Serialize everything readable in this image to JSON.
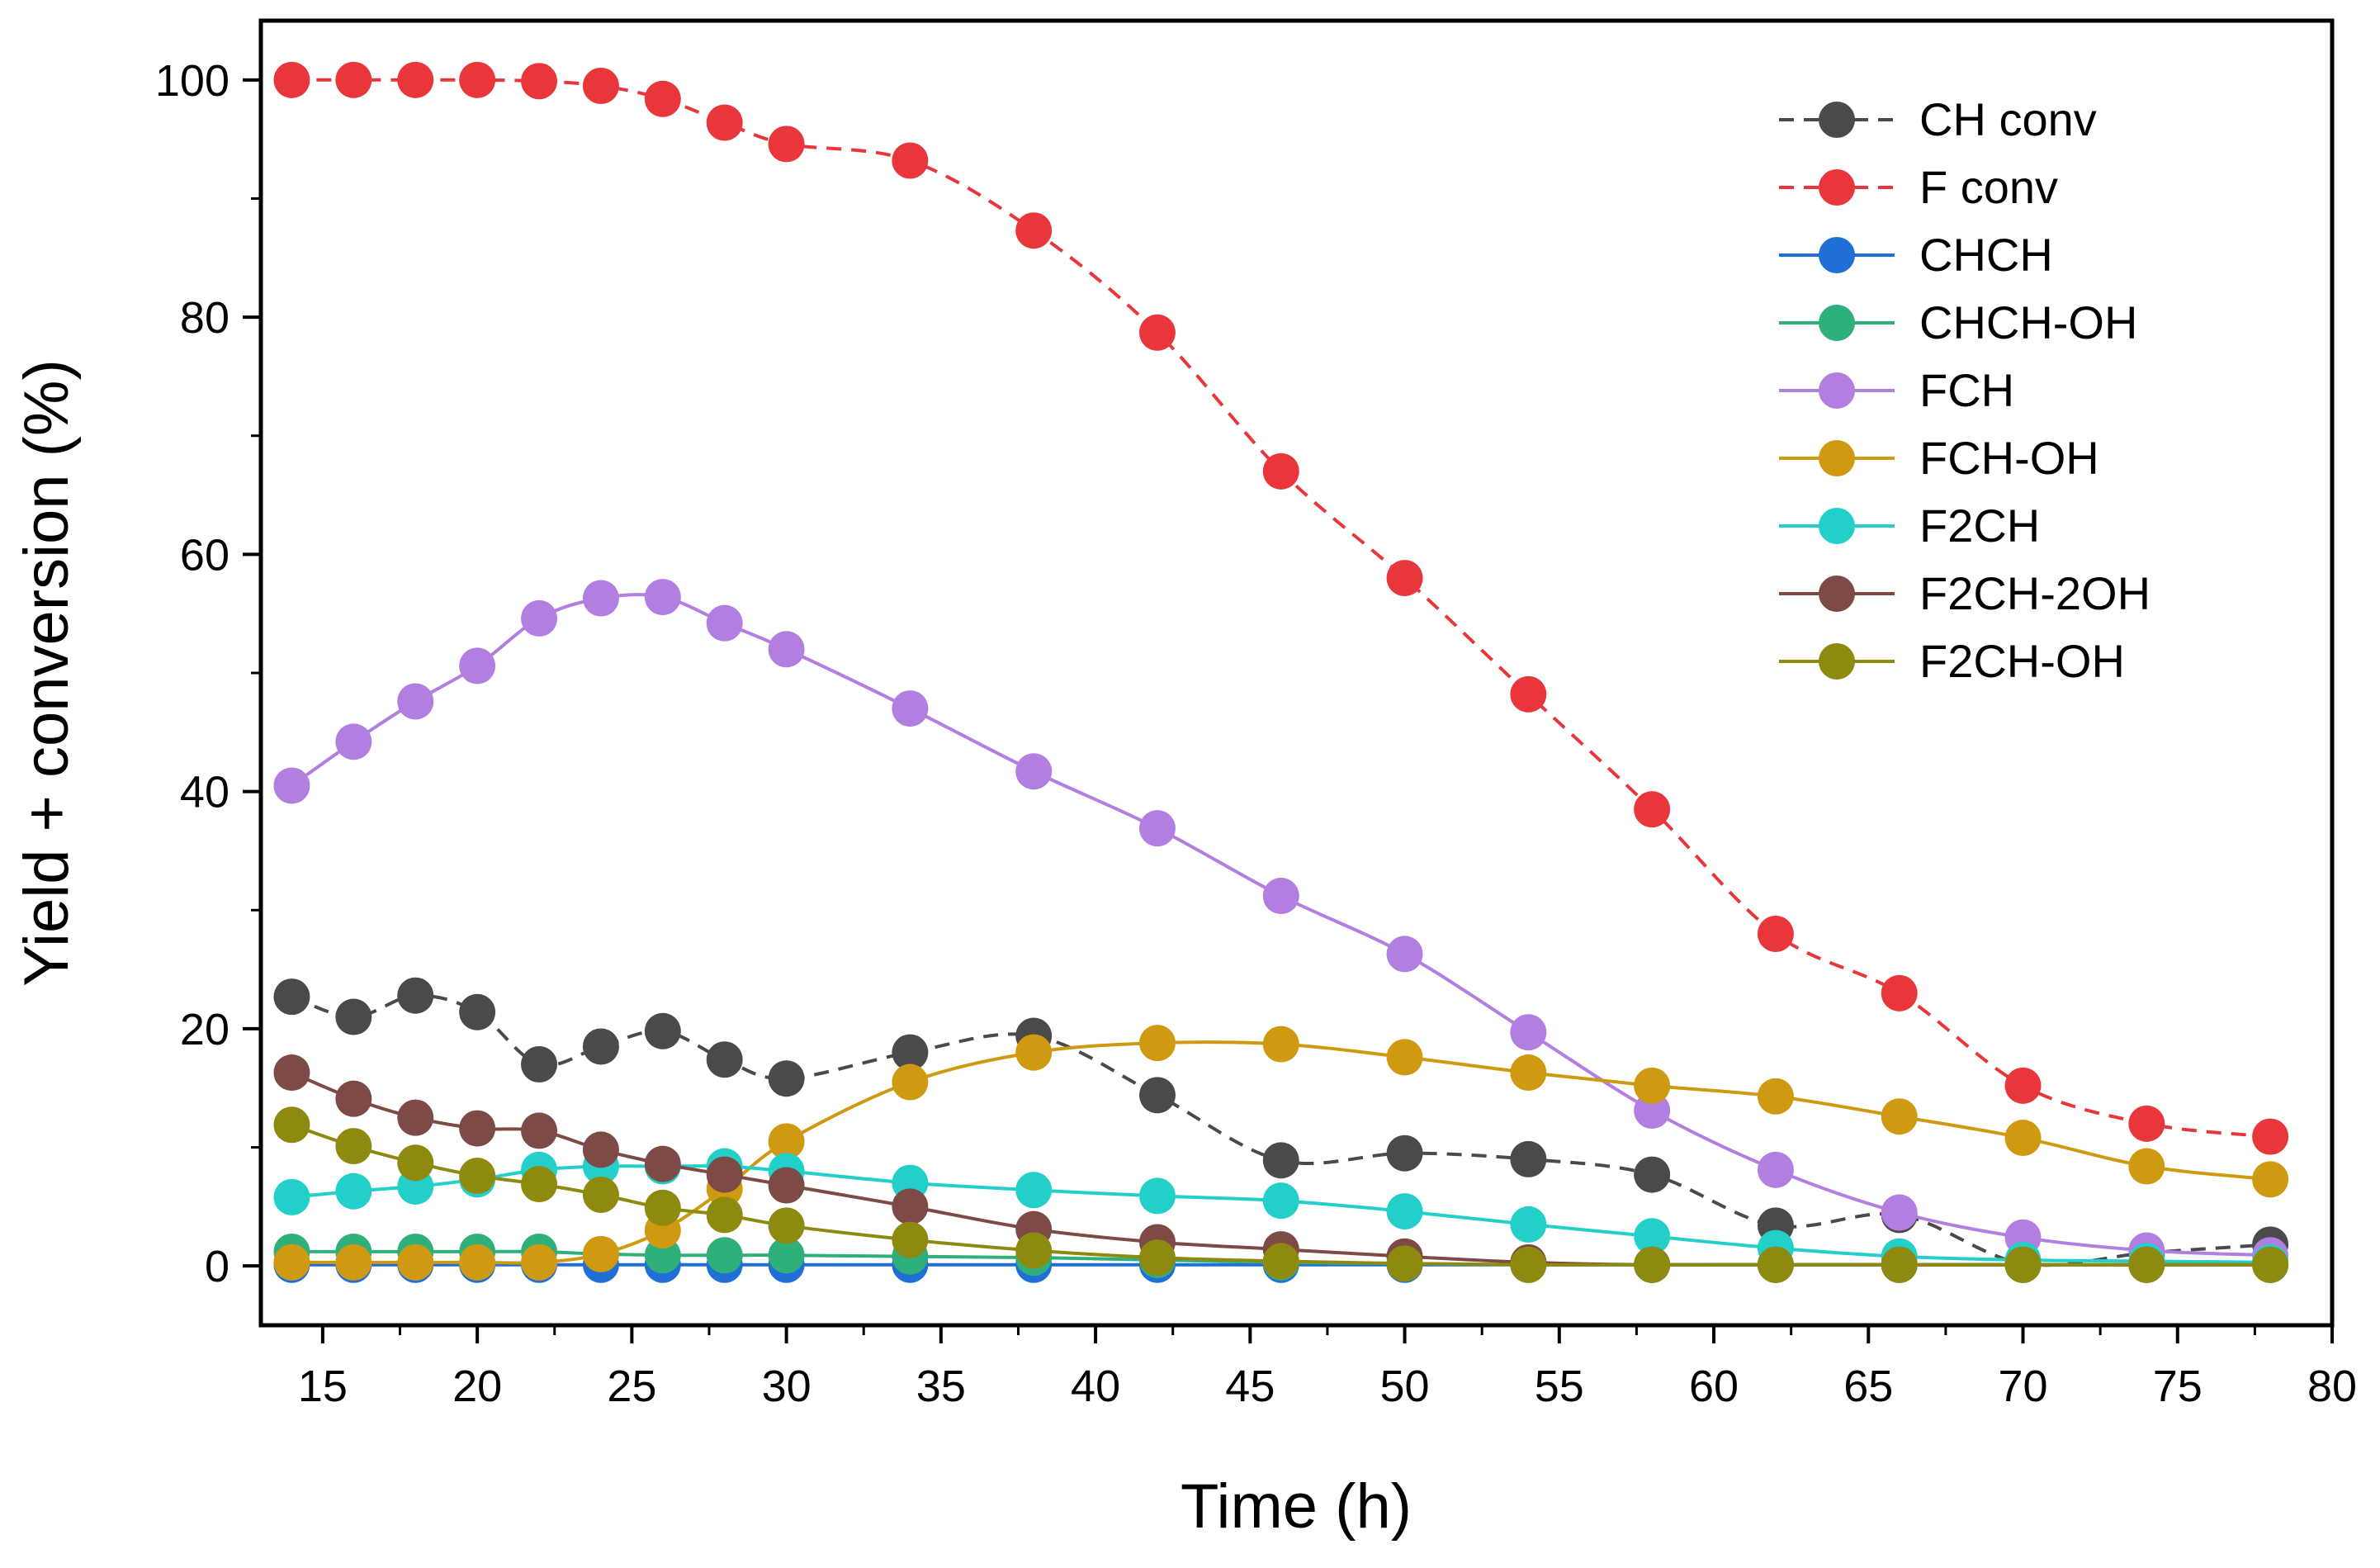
{
  "chart_data": {
    "type": "line",
    "title": "",
    "xlabel": "Time (h)",
    "ylabel": "Yield + conversion (%)",
    "xlim": [
      13,
      80
    ],
    "ylim": [
      -5,
      105
    ],
    "xticks": [
      15,
      20,
      25,
      30,
      35,
      40,
      45,
      50,
      55,
      60,
      65,
      70,
      75,
      80
    ],
    "yticks": [
      0,
      20,
      40,
      60,
      80,
      100
    ],
    "grid": false,
    "legend_position": "top-right",
    "x": [
      14,
      16,
      18,
      20,
      22,
      24,
      26,
      28,
      30,
      34,
      38,
      42,
      46,
      50,
      54,
      58,
      62,
      66,
      70,
      74,
      78
    ],
    "series": [
      {
        "name": "CH conv",
        "color": "#4a4a4a",
        "dash": true,
        "values": [
          22.7,
          21.0,
          22.8,
          21.4,
          17.0,
          18.5,
          19.8,
          17.4,
          15.8,
          18.0,
          19.4,
          14.4,
          8.9,
          9.5,
          9.0,
          7.7,
          3.4,
          4.3,
          0.2,
          1.1,
          1.8
        ]
      },
      {
        "name": "F conv",
        "color": "#e8363a",
        "dash": true,
        "values": [
          100.0,
          100.0,
          100.0,
          100.0,
          99.9,
          99.5,
          98.4,
          96.4,
          94.6,
          93.2,
          87.3,
          78.7,
          67.0,
          58.0,
          48.2,
          38.5,
          28.0,
          23.0,
          15.2,
          12.0,
          10.9
        ]
      },
      {
        "name": "CHCH",
        "color": "#1f6fd6",
        "dash": false,
        "values": [
          0.1,
          0.1,
          0.1,
          0.1,
          0.1,
          0.1,
          0.1,
          0.1,
          0.1,
          0.1,
          0.1,
          0.1,
          0.1,
          0.1,
          0.1,
          0.1,
          0.1,
          0.1,
          0.1,
          0.1,
          0.1
        ]
      },
      {
        "name": "CHCH-OH",
        "color": "#2fb07a",
        "dash": false,
        "values": [
          1.2,
          1.2,
          1.2,
          1.2,
          1.2,
          1.0,
          0.9,
          0.9,
          0.9,
          0.8,
          0.7,
          0.5,
          0.3,
          0.2,
          0.1,
          0.1,
          0.1,
          0.1,
          0.1,
          0.1,
          0.1
        ]
      },
      {
        "name": "FCH",
        "color": "#b27ee0",
        "dash": false,
        "values": [
          40.5,
          44.2,
          47.6,
          50.6,
          54.6,
          56.3,
          56.4,
          54.2,
          52.0,
          47.0,
          41.7,
          36.9,
          31.2,
          26.3,
          19.7,
          13.1,
          8.1,
          4.5,
          2.4,
          1.3,
          0.9
        ]
      },
      {
        "name": "FCH-OH",
        "color": "#cf9a12",
        "dash": false,
        "values": [
          0.3,
          0.3,
          0.3,
          0.3,
          0.3,
          1.0,
          3.0,
          6.5,
          10.5,
          15.5,
          18.0,
          18.8,
          18.7,
          17.6,
          16.3,
          15.2,
          14.3,
          12.6,
          10.8,
          8.4,
          7.3
        ]
      },
      {
        "name": "F2CH",
        "color": "#22cfc9",
        "dash": false,
        "values": [
          5.8,
          6.3,
          6.7,
          7.3,
          8.1,
          8.4,
          8.4,
          8.4,
          8.0,
          7.0,
          6.4,
          5.9,
          5.5,
          4.6,
          3.5,
          2.5,
          1.5,
          0.8,
          0.5,
          0.4,
          0.3
        ]
      },
      {
        "name": "F2CH-2OH",
        "color": "#7d4a46",
        "dash": false,
        "values": [
          16.3,
          14.1,
          12.5,
          11.6,
          11.4,
          9.8,
          8.6,
          7.7,
          6.8,
          5.0,
          3.1,
          2.0,
          1.4,
          0.8,
          0.3,
          0.1,
          0.1,
          0.1,
          0.1,
          0.1,
          0.1
        ]
      },
      {
        "name": "F2CH-OH",
        "color": "#8e8a10",
        "dash": false,
        "values": [
          11.9,
          10.1,
          8.7,
          7.6,
          6.9,
          6.0,
          4.9,
          4.3,
          3.4,
          2.2,
          1.3,
          0.7,
          0.4,
          0.2,
          0.1,
          0.1,
          0.1,
          0.1,
          0.1,
          0.1,
          0.1
        ]
      }
    ]
  }
}
